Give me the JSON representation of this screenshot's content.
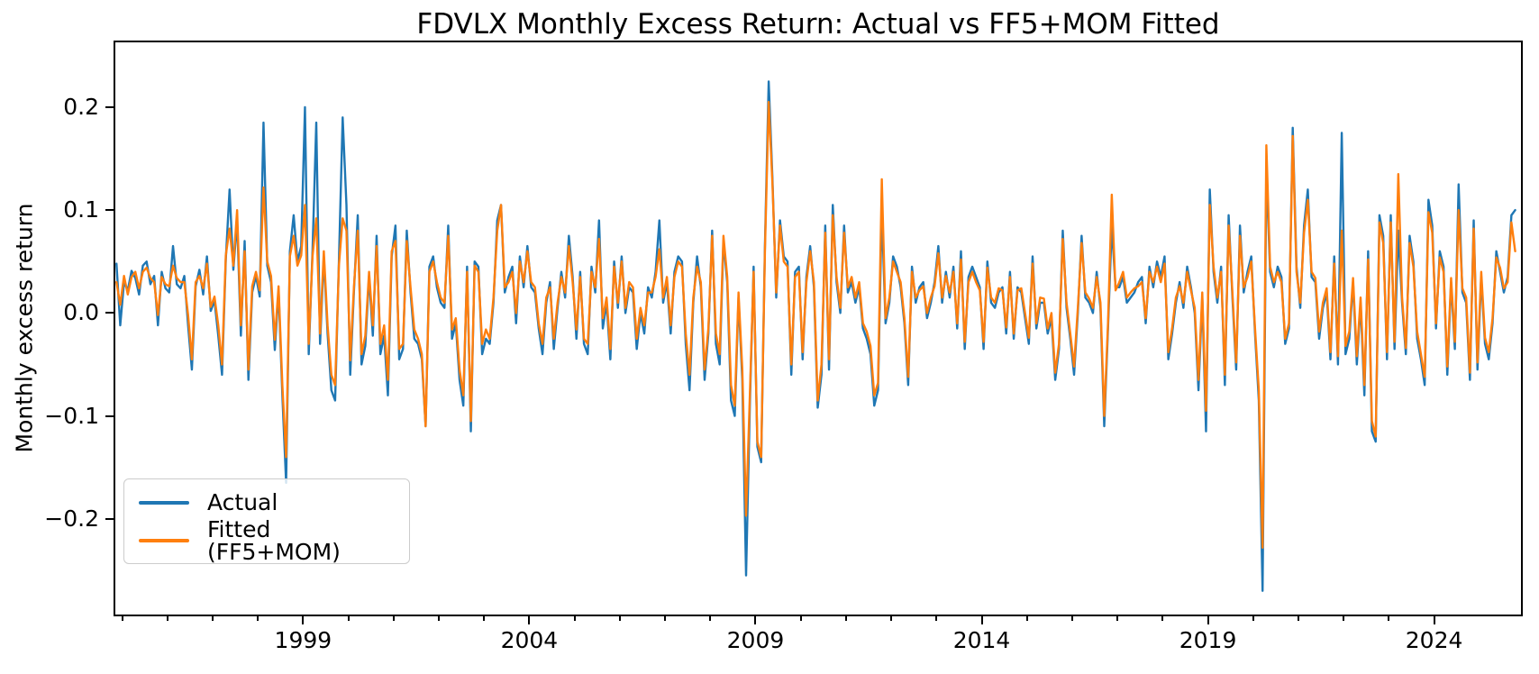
{
  "figure": {
    "background": "#ffffff",
    "spine_color": "#000000"
  },
  "chart_data": {
    "type": "line",
    "title": "FDVLX Monthly Excess Return: Actual vs FF5+MOM Fitted",
    "xlabel": "",
    "ylabel": "Monthly excess return",
    "x_start": {
      "year": 1994,
      "month": 11
    },
    "frequency": "monthly",
    "xlim": [
      1994.85,
      2025.92
    ],
    "ylim": [
      -0.293,
      0.263
    ],
    "grid": false,
    "legend_position": "lower left",
    "xticks": [
      {
        "value": 1999,
        "label": "1999"
      },
      {
        "value": 2004,
        "label": "2004"
      },
      {
        "value": 2009,
        "label": "2009"
      },
      {
        "value": 2014,
        "label": "2014"
      },
      {
        "value": 2019,
        "label": "2019"
      },
      {
        "value": 2024,
        "label": "2024"
      }
    ],
    "xticks_minor": [
      1995,
      1996,
      1997,
      1998,
      2000,
      2001,
      2002,
      2003,
      2005,
      2006,
      2007,
      2008,
      2010,
      2011,
      2012,
      2013,
      2015,
      2016,
      2017,
      2018,
      2020,
      2021,
      2022,
      2023,
      2025
    ],
    "yticks": [
      {
        "value": 0.2,
        "label": "0.2"
      },
      {
        "value": 0.1,
        "label": "0.1"
      },
      {
        "value": 0.0,
        "label": "0.0"
      },
      {
        "value": -0.1,
        "label": "−0.1"
      },
      {
        "value": -0.2,
        "label": "−0.2"
      }
    ],
    "series": [
      {
        "name": "Actual",
        "color": "#1f77b4",
        "values": [
          0.048,
          -0.012,
          0.03,
          0.022,
          0.041,
          0.034,
          0.018,
          0.046,
          0.05,
          0.028,
          0.036,
          -0.012,
          0.04,
          0.024,
          0.02,
          0.065,
          0.028,
          0.024,
          0.036,
          -0.012,
          -0.055,
          0.026,
          0.042,
          0.018,
          0.055,
          0.002,
          0.012,
          -0.022,
          -0.06,
          0.052,
          0.12,
          0.042,
          0.09,
          -0.022,
          0.07,
          -0.065,
          0.02,
          0.036,
          0.016,
          0.185,
          0.046,
          0.03,
          -0.036,
          0.022,
          -0.08,
          -0.165,
          0.06,
          0.095,
          0.05,
          0.065,
          0.2,
          -0.04,
          0.06,
          0.185,
          -0.03,
          0.055,
          -0.02,
          -0.075,
          -0.085,
          0.05,
          0.19,
          0.105,
          -0.06,
          0.022,
          0.095,
          -0.05,
          -0.032,
          0.036,
          -0.022,
          0.075,
          -0.04,
          -0.022,
          -0.08,
          0.055,
          0.085,
          -0.045,
          -0.035,
          0.08,
          0.02,
          -0.025,
          -0.03,
          -0.045,
          -0.11,
          0.045,
          0.055,
          0.025,
          0.01,
          0.005,
          0.085,
          -0.025,
          -0.01,
          -0.065,
          -0.09,
          0.045,
          -0.115,
          0.05,
          0.045,
          -0.04,
          -0.025,
          -0.03,
          0.01,
          0.09,
          0.105,
          0.02,
          0.035,
          0.045,
          -0.01,
          0.055,
          0.025,
          0.065,
          0.025,
          0.02,
          -0.015,
          -0.04,
          0.01,
          0.03,
          -0.035,
          0.005,
          0.04,
          0.015,
          0.075,
          0.035,
          -0.025,
          0.04,
          -0.03,
          -0.04,
          0.045,
          0.02,
          0.09,
          -0.015,
          0.01,
          -0.045,
          0.05,
          0.005,
          0.055,
          0.0,
          0.025,
          0.02,
          -0.035,
          0.0,
          -0.02,
          0.025,
          0.015,
          0.04,
          0.09,
          0.01,
          0.03,
          -0.02,
          0.04,
          0.055,
          0.05,
          -0.03,
          -0.075,
          0.01,
          0.055,
          0.025,
          -0.065,
          -0.02,
          0.08,
          -0.03,
          -0.05,
          0.07,
          0.03,
          -0.085,
          -0.1,
          0.015,
          -0.065,
          -0.255,
          -0.09,
          0.045,
          -0.13,
          -0.145,
          0.065,
          0.225,
          0.13,
          0.015,
          0.09,
          0.055,
          0.05,
          -0.06,
          0.04,
          0.045,
          -0.045,
          0.035,
          0.065,
          0.025,
          -0.092,
          -0.06,
          0.085,
          -0.055,
          0.105,
          0.03,
          0.0,
          0.085,
          0.02,
          0.03,
          0.01,
          0.025,
          -0.015,
          -0.025,
          -0.04,
          -0.09,
          -0.075,
          0.1,
          -0.01,
          0.01,
          0.055,
          0.045,
          0.025,
          -0.01,
          -0.07,
          0.045,
          0.01,
          0.025,
          0.03,
          -0.005,
          0.01,
          0.03,
          0.065,
          0.01,
          0.04,
          0.015,
          0.045,
          -0.015,
          0.06,
          -0.035,
          0.035,
          0.045,
          0.035,
          0.025,
          -0.035,
          0.05,
          0.01,
          0.005,
          0.02,
          0.025,
          -0.02,
          0.04,
          -0.025,
          0.025,
          0.02,
          -0.005,
          -0.03,
          0.055,
          -0.015,
          0.01,
          0.01,
          -0.02,
          -0.005,
          -0.065,
          -0.035,
          0.08,
          0.005,
          -0.025,
          -0.06,
          0.0,
          0.075,
          0.015,
          0.01,
          0.0,
          0.04,
          0.005,
          -0.11,
          -0.015,
          0.085,
          0.025,
          0.025,
          0.035,
          0.01,
          0.015,
          0.02,
          0.03,
          0.035,
          -0.01,
          0.045,
          0.025,
          0.05,
          0.035,
          0.055,
          -0.045,
          -0.02,
          0.01,
          0.03,
          0.005,
          0.045,
          0.025,
          0.0,
          -0.075,
          0.015,
          -0.115,
          0.12,
          0.04,
          0.01,
          0.045,
          -0.07,
          0.095,
          0.015,
          -0.055,
          0.085,
          0.02,
          0.04,
          0.055,
          -0.02,
          -0.085,
          -0.27,
          0.14,
          0.04,
          0.025,
          0.045,
          0.035,
          -0.03,
          -0.015,
          0.18,
          0.045,
          0.005,
          0.085,
          0.12,
          0.035,
          0.03,
          -0.025,
          0.005,
          0.02,
          -0.045,
          0.055,
          -0.05,
          0.175,
          -0.04,
          -0.025,
          0.03,
          -0.05,
          0.01,
          -0.08,
          0.06,
          -0.115,
          -0.125,
          0.095,
          0.075,
          -0.045,
          0.095,
          -0.035,
          0.08,
          0.01,
          -0.04,
          0.075,
          0.05,
          -0.025,
          -0.045,
          -0.07,
          0.11,
          0.085,
          -0.015,
          0.06,
          0.045,
          -0.06,
          0.03,
          -0.035,
          0.125,
          0.02,
          0.01,
          -0.065,
          0.09,
          -0.055,
          0.035,
          -0.03,
          -0.045,
          -0.01,
          0.06,
          0.04,
          0.02,
          0.035,
          0.095,
          0.1
        ]
      },
      {
        "name": "Fitted (FF5+MOM)",
        "color": "#ff7f0e",
        "values": [
          0.03,
          0.008,
          0.036,
          0.018,
          0.035,
          0.04,
          0.024,
          0.04,
          0.044,
          0.034,
          0.03,
          -0.002,
          0.035,
          0.028,
          0.026,
          0.046,
          0.034,
          0.03,
          0.03,
          -0.002,
          -0.045,
          0.03,
          0.036,
          0.024,
          0.048,
          0.006,
          0.016,
          -0.012,
          -0.05,
          0.056,
          0.082,
          0.046,
          0.1,
          -0.012,
          0.06,
          -0.055,
          0.026,
          0.04,
          0.022,
          0.122,
          0.05,
          0.036,
          -0.026,
          0.026,
          -0.07,
          -0.14,
          0.055,
          0.075,
          0.046,
          0.056,
          0.105,
          -0.03,
          0.055,
          0.092,
          -0.02,
          0.06,
          -0.012,
          -0.06,
          -0.07,
          0.046,
          0.092,
          0.08,
          -0.046,
          0.026,
          0.08,
          -0.04,
          -0.022,
          0.04,
          -0.012,
          0.065,
          -0.03,
          -0.012,
          -0.065,
          0.06,
          0.07,
          -0.035,
          -0.03,
          0.07,
          0.025,
          -0.016,
          -0.025,
          -0.04,
          -0.11,
          0.04,
          0.05,
          0.03,
          0.015,
          0.01,
          0.075,
          -0.016,
          -0.005,
          -0.055,
          -0.08,
          0.04,
          -0.105,
          0.046,
          0.04,
          -0.03,
          -0.016,
          -0.025,
          0.015,
          0.08,
          0.105,
          0.025,
          0.03,
          0.04,
          0.0,
          0.05,
          0.03,
          0.06,
          0.03,
          0.025,
          -0.01,
          -0.03,
          0.015,
          0.025,
          -0.025,
          0.01,
          0.035,
          0.02,
          0.065,
          0.03,
          -0.016,
          0.035,
          -0.025,
          -0.03,
          0.04,
          0.025,
          0.072,
          -0.005,
          0.015,
          -0.035,
          0.045,
          0.01,
          0.05,
          0.005,
          0.03,
          0.025,
          -0.025,
          0.005,
          -0.012,
          0.02,
          0.02,
          0.035,
          0.062,
          0.015,
          0.035,
          -0.012,
          0.035,
          0.05,
          0.045,
          -0.02,
          -0.06,
          0.015,
          0.045,
          0.03,
          -0.055,
          -0.015,
          0.075,
          -0.02,
          -0.04,
          0.075,
          0.035,
          -0.07,
          -0.09,
          0.02,
          -0.055,
          -0.197,
          -0.08,
          0.04,
          -0.125,
          -0.14,
          0.06,
          0.205,
          0.125,
          0.02,
          0.085,
          0.05,
          0.045,
          -0.05,
          0.035,
          0.04,
          -0.038,
          0.03,
          0.06,
          0.03,
          -0.085,
          -0.05,
          0.078,
          -0.045,
          0.095,
          0.035,
          0.005,
          0.078,
          0.025,
          0.035,
          0.015,
          0.03,
          -0.01,
          -0.018,
          -0.032,
          -0.08,
          -0.068,
          0.13,
          -0.005,
          0.015,
          0.05,
          0.04,
          0.03,
          -0.005,
          -0.062,
          0.04,
          0.015,
          0.022,
          0.026,
          0.0,
          0.015,
          0.026,
          0.058,
          0.015,
          0.036,
          0.02,
          0.04,
          -0.01,
          0.052,
          -0.028,
          0.03,
          0.04,
          0.03,
          0.022,
          -0.028,
          0.044,
          0.015,
          0.01,
          0.024,
          0.022,
          -0.014,
          0.035,
          -0.02,
          0.022,
          0.024,
          0.0,
          -0.024,
          0.048,
          -0.01,
          0.015,
          0.014,
          -0.015,
          0.0,
          -0.058,
          -0.03,
          0.072,
          0.01,
          -0.02,
          -0.052,
          0.005,
          0.068,
          0.02,
          0.014,
          0.005,
          0.035,
          0.01,
          -0.1,
          -0.01,
          0.115,
          0.022,
          0.03,
          0.04,
          0.015,
          0.02,
          0.024,
          0.026,
          0.03,
          -0.005,
          0.04,
          0.03,
          0.045,
          0.03,
          0.048,
          -0.038,
          -0.015,
          0.015,
          0.026,
          0.01,
          0.04,
          0.022,
          0.005,
          -0.065,
          0.02,
          -0.095,
          0.105,
          0.045,
          0.015,
          0.04,
          -0.06,
          0.085,
          0.02,
          -0.048,
          0.075,
          0.025,
          0.035,
          0.05,
          -0.015,
          -0.075,
          -0.228,
          0.163,
          0.045,
          0.03,
          0.04,
          0.03,
          -0.025,
          -0.01,
          0.172,
          0.04,
          0.01,
          0.078,
          0.11,
          0.04,
          0.034,
          -0.018,
          0.01,
          0.024,
          -0.038,
          0.048,
          -0.042,
          0.08,
          -0.032,
          -0.018,
          0.034,
          -0.042,
          0.015,
          -0.07,
          0.052,
          -0.105,
          -0.12,
          0.088,
          0.068,
          -0.038,
          0.088,
          -0.028,
          0.135,
          0.015,
          -0.034,
          0.068,
          0.045,
          -0.018,
          -0.04,
          -0.062,
          0.098,
          0.078,
          -0.01,
          0.054,
          0.04,
          -0.052,
          0.034,
          -0.028,
          0.1,
          0.024,
          0.015,
          -0.058,
          0.082,
          -0.048,
          0.04,
          -0.024,
          -0.038,
          -0.005,
          0.054,
          0.044,
          0.024,
          0.03,
          0.088,
          0.06
        ]
      }
    ]
  }
}
